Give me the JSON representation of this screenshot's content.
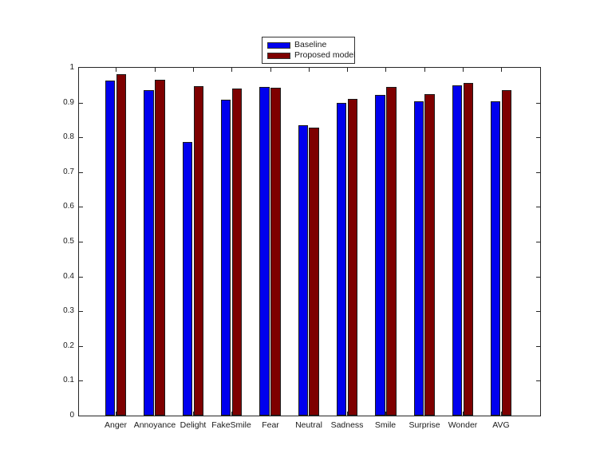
{
  "chart_data": {
    "type": "bar",
    "title": "",
    "xlabel": "",
    "ylabel": "",
    "categories": [
      "Anger",
      "Annoyance",
      "Delight",
      "FakeSmile",
      "Fear",
      "Neutral",
      "Sadness",
      "Smile",
      "Surprise",
      "Wonder",
      "AVG"
    ],
    "series": [
      {
        "name": "Baseline",
        "color": "#0000EE",
        "values": [
          0.964,
          0.936,
          0.786,
          0.908,
          0.946,
          0.834,
          0.898,
          0.921,
          0.903,
          0.949,
          0.904
        ]
      },
      {
        "name": "Proposed model",
        "color": "#7E0000",
        "values": [
          0.982,
          0.965,
          0.947,
          0.941,
          0.942,
          0.829,
          0.91,
          0.945,
          0.924,
          0.956,
          0.935
        ]
      }
    ],
    "ylim": [
      0,
      1
    ],
    "yticks": [
      0,
      0.1,
      0.2,
      0.3,
      0.4,
      0.5,
      0.6,
      0.7,
      0.8,
      0.9,
      1
    ],
    "ytick_labels": [
      "0",
      "0.1",
      "0.2",
      "0.3",
      "0.4",
      "0.5",
      "0.6",
      "0.7",
      "0.8",
      "0.9",
      "1"
    ],
    "grid": false,
    "legend_position": "above-plot-center",
    "bar_edge_color": "#1a1a1a",
    "axis_color": "#262626"
  }
}
